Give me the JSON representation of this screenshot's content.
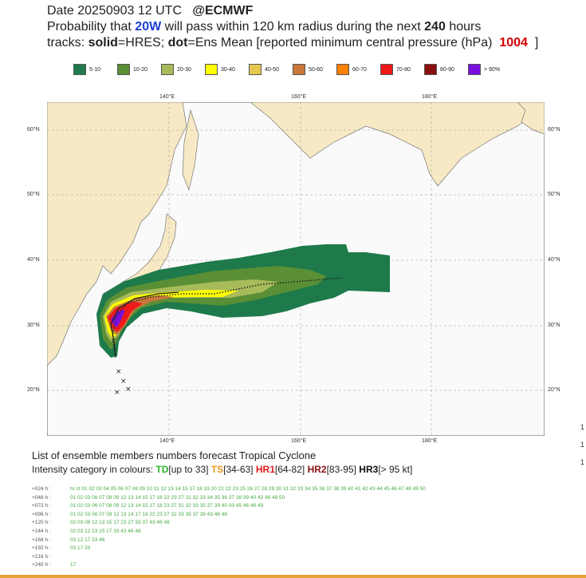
{
  "header": {
    "line1_prefix": "Date 20250903 12 UTC",
    "line1_brand": "@ECMWF",
    "line2_prefix": "Probability that",
    "storm": "20W",
    "line2_mid": "will pass within 120 km radius during the next",
    "hours": "240",
    "line2_suffix": "hours",
    "line3_prefix": "tracks:",
    "solid": "solid",
    "solid_desc": "=HRES;",
    "dot": "dot",
    "dot_desc": "=Ens Mean [reported minimum central pressure (hPa)",
    "pressure": "1004",
    "line3_end": "]"
  },
  "legend": [
    {
      "label": "5-10",
      "color": "#1e7a4a"
    },
    {
      "label": "10-20",
      "color": "#5a8f35"
    },
    {
      "label": "20-30",
      "color": "#a8bb5a"
    },
    {
      "label": "30-40",
      "color": "#ffff00"
    },
    {
      "label": "40-50",
      "color": "#e6c850"
    },
    {
      "label": "50-60",
      "color": "#c8783a"
    },
    {
      "label": "60-70",
      "color": "#ff8000"
    },
    {
      "label": "70-80",
      "color": "#ee1a1a"
    },
    {
      "label": "80-90",
      "color": "#8b1010"
    },
    {
      "label": "> 90%",
      "color": "#7a10e0"
    }
  ],
  "axes": {
    "lon_top": [
      "140°E",
      "160°E",
      "180°E"
    ],
    "lon_bottom": [
      "140°E",
      "160°E",
      "180°E"
    ],
    "lat": [
      "60°N",
      "50°N",
      "40°N",
      "30°N",
      "20°N"
    ]
  },
  "section": {
    "title": "List of ensemble members numbers forecast Tropical Cyclone",
    "intensity_prefix": "Intensity category in colours:",
    "td": "TD",
    "td_desc": "[up to 33]",
    "ts": "TS",
    "ts_desc": "[34-63]",
    "hr1": "HR1",
    "hr1_desc": "[64-82]",
    "hr2": "HR2",
    "hr2_desc": "[83-95]",
    "hr3": "HR3",
    "hr3_desc": "[> 95 kt]"
  },
  "members_table": [
    {
      "h": "+024 h :",
      "v": "hr ct 01 02 03 04 05 06 07 08 09 10 11 12 13 14 15 17 18 19 20 21 22 23 25 26 27 28 29 30 31 32 33 34 35 36 37 38 39 40 41 42 43 44 45 46 47 48 49 50"
    },
    {
      "h": "+048 h :",
      "v": "01 02 03 06 07 08 09 12 13 14 15 17 18 22 23 27 31 32 33 34 35 36 37 38 39 40 43 46 48 50"
    },
    {
      "h": "+072 h :",
      "v": "01 02 03 06 07 08 09 12 13 14 15 17 18 23 27 31 32 33 35 37 39 40 43 45 46 48 49"
    },
    {
      "h": "+096 h :",
      "v": "01 02 03 06 07 09 12 13 14 17 18 22 23 27 32 33 35 37 39 43 46 48"
    },
    {
      "h": "+120 h :",
      "v": "02 03 06 12 13 15 17 23 27 33 37 43 46 48"
    },
    {
      "h": "+144 h :",
      "v": "02 03 12 13 15 17 33 43 46 48"
    },
    {
      "h": "+168 h :",
      "v": "03 12 17 33 46"
    },
    {
      "h": "+192 h :",
      "v": "03 17 33"
    },
    {
      "h": "+216 h :",
      "v": ""
    },
    {
      "h": "+240 h :",
      "v": "17"
    }
  ],
  "edge_numbers": [
    "1",
    "1",
    "1"
  ]
}
